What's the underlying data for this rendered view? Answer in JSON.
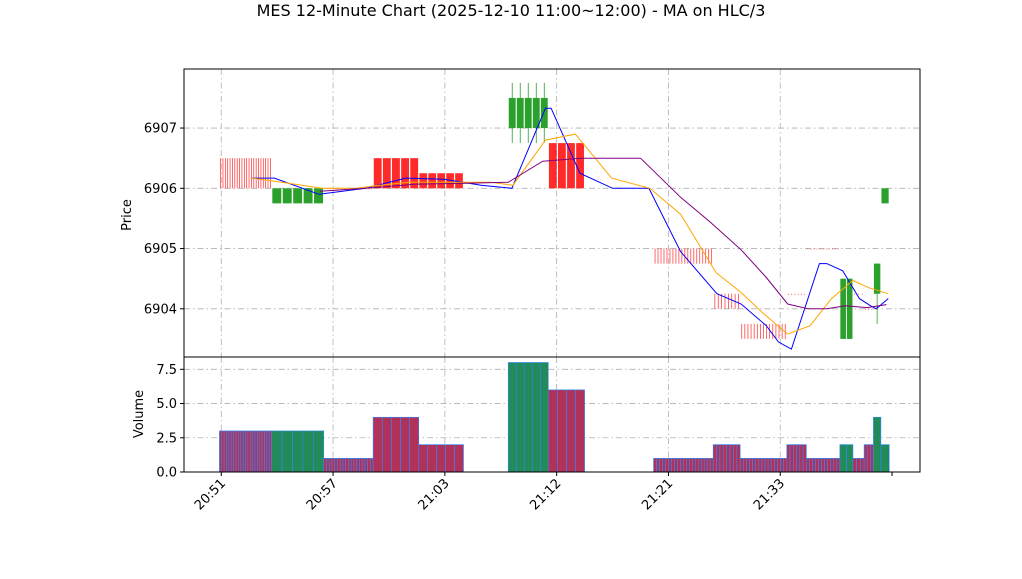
{
  "chart_data": {
    "type": "candlestick",
    "title": "MES 12-Minute Chart (2025-12-10 11:00~12:00) - MA on HLC/3",
    "price_panel": {
      "ylabel": "Price",
      "ylim": [
        6903.2,
        6907.98
      ],
      "yticks": [
        6904,
        6905,
        6906,
        6907
      ],
      "grid": true
    },
    "volume_panel": {
      "ylabel": "Volume",
      "ylim": [
        0,
        8.4
      ],
      "yticks": [
        0.0,
        2.5,
        5.0,
        7.5
      ],
      "ytick_labels": [
        "0.0",
        "2.5",
        "5.0",
        "7.5"
      ],
      "grid": true
    },
    "x_axis": {
      "xlim": [
        20.0,
        99.0
      ],
      "ticks": [
        24,
        36,
        48,
        60,
        72,
        84,
        96
      ],
      "tick_labels": [
        "20:51",
        "20:57",
        "21:03",
        "21:12",
        "21:21",
        "21:33",
        ""
      ]
    },
    "colors": {
      "up": "#2ca02c",
      "down": "#ff2a2a",
      "ma_fast": "#0000ff",
      "ma_mid": "#ffa500",
      "ma_slow": "#800080",
      "volume_edge": "#2a8cff",
      "volume_up_fill": "#238a5a",
      "volume_down_fill": "#b0325a"
    },
    "candles": [
      {
        "x0": 23.8,
        "x1": 29.4,
        "open": 6906.5,
        "close": 6906.0,
        "high": 6906.5,
        "low": 6906.0,
        "volume": 3,
        "dir": "down",
        "style": "lines",
        "n": 22
      },
      {
        "x0": 29.4,
        "x1": 35.0,
        "open": 6905.75,
        "close": 6906.0,
        "high": 6906.0,
        "low": 6905.75,
        "volume": 3,
        "dir": "up",
        "style": "bars",
        "n": 5
      },
      {
        "x0": 35.0,
        "x1": 40.3,
        "open": 6906.0,
        "close": 6906.0,
        "high": 6906.0,
        "low": 6906.0,
        "volume": 1,
        "dir": "down",
        "style": "lines",
        "n": 18
      },
      {
        "x0": 40.3,
        "x1": 45.2,
        "open": 6906.5,
        "close": 6906.0,
        "high": 6906.5,
        "low": 6906.0,
        "volume": 4,
        "dir": "down",
        "style": "bars",
        "n": 5
      },
      {
        "x0": 45.2,
        "x1": 50.0,
        "open": 6906.25,
        "close": 6906.0,
        "high": 6906.25,
        "low": 6906.0,
        "volume": 2,
        "dir": "down",
        "style": "bars",
        "n": 5
      },
      {
        "x0": 54.8,
        "x1": 59.1,
        "open": 6907.0,
        "close": 6907.5,
        "high": 6907.75,
        "low": 6906.75,
        "volume": 8,
        "dir": "up",
        "style": "bars",
        "n": 5
      },
      {
        "x0": 59.1,
        "x1": 63.0,
        "open": 6906.75,
        "close": 6906.0,
        "high": 6906.75,
        "low": 6906.0,
        "volume": 6,
        "dir": "down",
        "style": "bars",
        "n": 4
      },
      {
        "x0": 70.4,
        "x1": 76.8,
        "open": 6905.0,
        "close": 6904.75,
        "high": 6905.0,
        "low": 6904.75,
        "volume": 1,
        "dir": "down",
        "style": "lines",
        "n": 20
      },
      {
        "x0": 76.8,
        "x1": 79.7,
        "open": 6904.25,
        "close": 6904.0,
        "high": 6904.25,
        "low": 6904.0,
        "volume": 2,
        "dir": "down",
        "style": "lines",
        "n": 8
      },
      {
        "x0": 79.7,
        "x1": 84.7,
        "open": 6903.75,
        "close": 6903.5,
        "high": 6903.75,
        "low": 6903.5,
        "volume": 1,
        "dir": "down",
        "style": "lines",
        "n": 15
      },
      {
        "x0": 84.7,
        "x1": 86.8,
        "open": 6904.25,
        "close": 6904.25,
        "high": 6904.25,
        "low": 6904.25,
        "volume": 2,
        "dir": "down",
        "style": "lines",
        "n": 6
      },
      {
        "x0": 86.8,
        "x1": 90.4,
        "open": 6905.0,
        "close": 6905.0,
        "high": 6905.0,
        "low": 6905.0,
        "volume": 1,
        "dir": "down",
        "style": "lines",
        "n": 11
      },
      {
        "x0": 90.4,
        "x1": 91.8,
        "open": 6903.5,
        "close": 6904.5,
        "high": 6904.5,
        "low": 6903.5,
        "volume": 2,
        "dir": "up",
        "style": "bars",
        "n": 2
      },
      {
        "x0": 91.8,
        "x1": 93.0,
        "open": 6904.25,
        "close": 6904.25,
        "high": 6904.25,
        "low": 6904.25,
        "volume": 1,
        "dir": "down",
        "style": "lines",
        "n": 3
      },
      {
        "x0": 93.0,
        "x1": 94.0,
        "open": 6904.0,
        "close": 6904.0,
        "high": 6904.0,
        "low": 6904.0,
        "volume": 2,
        "dir": "down",
        "style": "lines",
        "n": 3
      },
      {
        "x0": 94.0,
        "x1": 94.8,
        "open": 6904.25,
        "close": 6904.75,
        "high": 6904.75,
        "low": 6903.75,
        "volume": 4,
        "dir": "up",
        "style": "bars",
        "n": 1
      },
      {
        "x0": 94.8,
        "x1": 95.7,
        "open": 6905.75,
        "close": 6906.0,
        "high": 6906.0,
        "low": 6905.75,
        "volume": 2,
        "dir": "up",
        "style": "bars",
        "n": 1
      }
    ],
    "ma_series": [
      {
        "color": "#0000ff",
        "points": [
          [
            27.3,
            6906.17
          ],
          [
            29.7,
            6906.17
          ],
          [
            34.5,
            6905.9
          ],
          [
            39.5,
            6906.0
          ],
          [
            43.8,
            6906.17
          ],
          [
            47.9,
            6906.15
          ],
          [
            51.9,
            6906.05
          ],
          [
            55.2,
            6906.0
          ],
          [
            58.8,
            6907.33
          ],
          [
            59.4,
            6907.33
          ],
          [
            62.5,
            6906.25
          ],
          [
            66.0,
            6906.0
          ],
          [
            69.9,
            6906.0
          ],
          [
            73.3,
            6904.95
          ],
          [
            77.2,
            6904.25
          ],
          [
            79.8,
            6904.08
          ],
          [
            82.5,
            6903.72
          ],
          [
            83.8,
            6903.45
          ],
          [
            85.2,
            6903.33
          ],
          [
            88.2,
            6904.75
          ],
          [
            89.0,
            6904.75
          ],
          [
            90.7,
            6904.63
          ],
          [
            92.5,
            6904.17
          ],
          [
            93.7,
            6904.05
          ],
          [
            94.3,
            6904.0
          ],
          [
            95.6,
            6904.17
          ]
        ]
      },
      {
        "color": "#ffa500",
        "points": [
          [
            27.3,
            6906.17
          ],
          [
            30.5,
            6906.1
          ],
          [
            34.8,
            6906.0
          ],
          [
            38.5,
            6906.0
          ],
          [
            41.0,
            6906.05
          ],
          [
            44.2,
            6906.1
          ],
          [
            48.5,
            6906.1
          ],
          [
            53.0,
            6906.1
          ],
          [
            55.3,
            6906.05
          ],
          [
            58.8,
            6906.8
          ],
          [
            62.0,
            6906.9
          ],
          [
            65.9,
            6906.17
          ],
          [
            70.0,
            6906.0
          ],
          [
            73.3,
            6905.57
          ],
          [
            77.1,
            6904.6
          ],
          [
            79.8,
            6904.27
          ],
          [
            82.2,
            6903.92
          ],
          [
            84.8,
            6903.58
          ],
          [
            87.2,
            6903.72
          ],
          [
            89.5,
            6904.17
          ],
          [
            91.8,
            6904.47
          ],
          [
            93.5,
            6904.35
          ],
          [
            95.6,
            6904.25
          ]
        ]
      },
      {
        "color": "#800080",
        "points": [
          [
            34.6,
            6905.95
          ],
          [
            39.5,
            6906.0
          ],
          [
            45.0,
            6906.07
          ],
          [
            49.2,
            6906.08
          ],
          [
            54.8,
            6906.1
          ],
          [
            58.5,
            6906.45
          ],
          [
            62.6,
            6906.5
          ],
          [
            66.0,
            6906.5
          ],
          [
            69.0,
            6906.5
          ],
          [
            70.0,
            6906.35
          ],
          [
            73.3,
            6905.85
          ],
          [
            76.4,
            6905.45
          ],
          [
            79.8,
            6904.98
          ],
          [
            82.5,
            6904.52
          ],
          [
            84.8,
            6904.08
          ],
          [
            87.0,
            6904.0
          ],
          [
            89.0,
            6904.0
          ],
          [
            91.0,
            6904.05
          ],
          [
            93.3,
            6904.02
          ],
          [
            95.4,
            6904.07
          ]
        ]
      }
    ]
  }
}
